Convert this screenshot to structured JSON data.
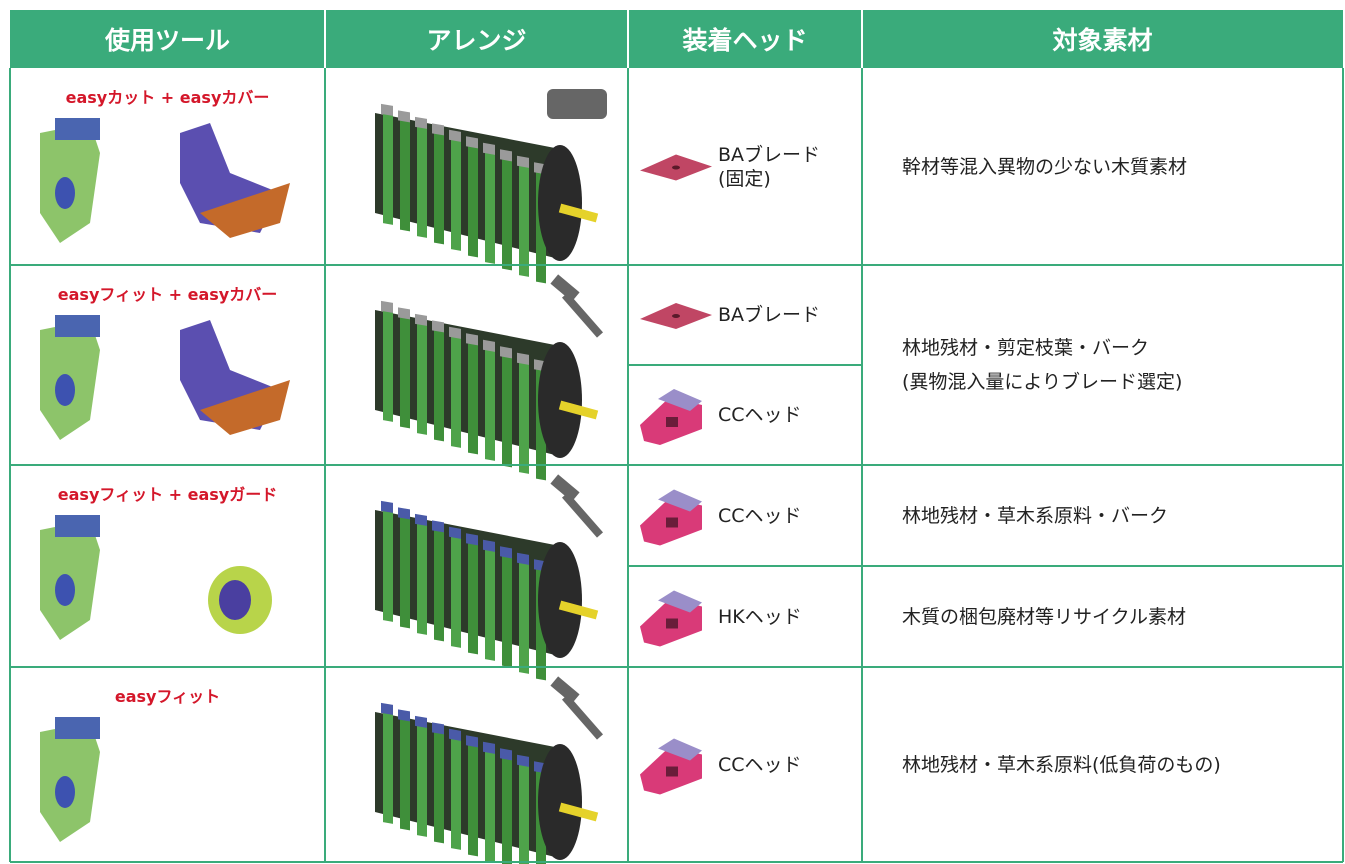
{
  "table": {
    "header": [
      "使用ツール",
      "アレンジ",
      "装着ヘッド",
      "対象素材"
    ],
    "rows": [
      {
        "tool": "easyカット + easyカバー",
        "heads": [
          [
            "BAブレード",
            "(固定)"
          ]
        ],
        "materials": [
          [
            "幹材等混入異物の少ない木質素材"
          ]
        ]
      },
      {
        "tool": "easyフィット + easyカバー",
        "heads": [
          [
            "BAブレード"
          ],
          [
            "CCヘッド"
          ]
        ],
        "materials": [
          [
            "林地残材・剪定枝葉・バーク",
            "(異物混入量によりブレード選定)"
          ]
        ]
      },
      {
        "tool": "easyフィット + easyガード",
        "heads": [
          [
            "CCヘッド"
          ],
          [
            "HKヘッド"
          ]
        ],
        "materials": [
          [
            "林地残材・草木系原料・バーク"
          ],
          [
            "木質の梱包廃材等リサイクル素材"
          ]
        ]
      },
      {
        "tool": "easyフィット",
        "heads": [
          [
            "CCヘッド"
          ]
        ],
        "materials": [
          [
            "林地残材・草木系原料(低負荷のもの)"
          ]
        ]
      }
    ]
  }
}
